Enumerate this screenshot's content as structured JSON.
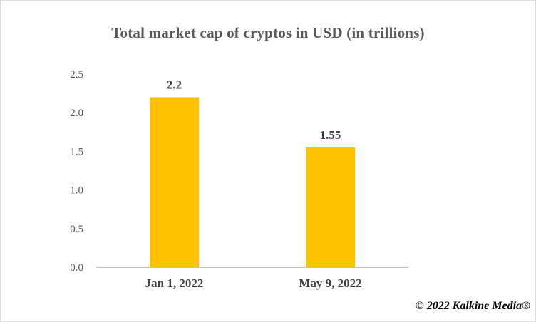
{
  "chart_data": {
    "type": "bar",
    "title": "Total market cap of cryptos in USD (in trillions)",
    "categories": [
      "Jan 1, 2022",
      "May 9, 2022"
    ],
    "values": [
      2.2,
      1.55
    ],
    "data_labels": [
      "2.2",
      "1.55"
    ],
    "ylim": [
      0,
      2.5
    ],
    "yticks": [
      "0.0",
      "0.5",
      "1.0",
      "1.5",
      "2.0",
      "2.5"
    ],
    "xlabel": "",
    "ylabel": "",
    "grid": false,
    "bar_color": "#FFC000"
  },
  "copyright": "© 2022 Kalkine Media®"
}
